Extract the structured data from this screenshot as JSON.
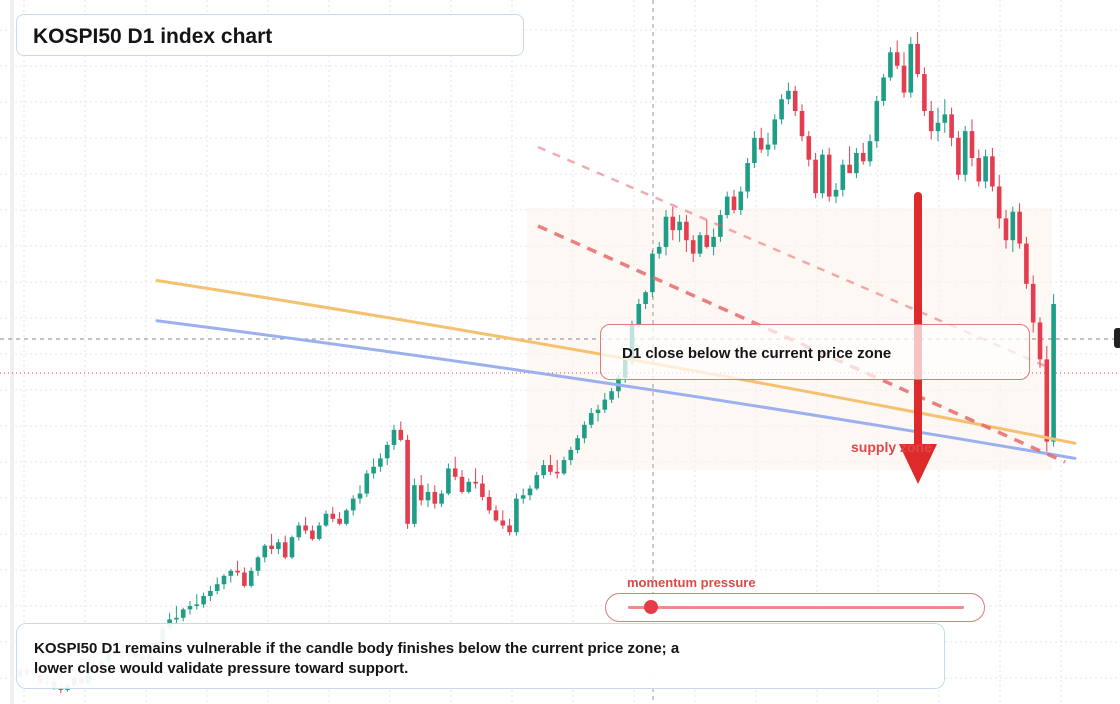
{
  "header": {
    "title": "KOSPI50 D1 index chart"
  },
  "annotations": {
    "note": "D1 close below the current price zone",
    "zone_label": "supply zone",
    "momentum_label": "momentum pressure",
    "momentum_level": 0.07,
    "summary": "KOSPI50 D1 remains vulnerable if the candle body finishes below the current price zone; a lower close would validate pressure toward support."
  },
  "colors": {
    "up": "#1e9e86",
    "down": "#e43d4f",
    "ma_orange": "#f5c170",
    "ma_blue": "#9cb0ef",
    "trend_dashed": "#e66a6a",
    "arrow": "#dd2a2a",
    "grid": "#e6e6e6"
  },
  "chart_data": {
    "type": "candlestick",
    "ohlc": [
      [
        78.4,
        79.0,
        78.3,
        78.8
      ],
      [
        78.8,
        79.0,
        78.4,
        78.6
      ],
      [
        78.6,
        78.9,
        78.3,
        78.5
      ],
      [
        78.5,
        78.7,
        77.9,
        78.0
      ],
      [
        78.0,
        78.3,
        77.8,
        78.1
      ],
      [
        78.1,
        78.4,
        77.6,
        77.7
      ],
      [
        77.7,
        77.9,
        77.4,
        77.6
      ],
      [
        77.6,
        78.0,
        77.5,
        77.9
      ],
      [
        77.9,
        78.4,
        77.8,
        78.3
      ],
      [
        78.3,
        78.6,
        77.9,
        78.0
      ],
      [
        78.0,
        78.8,
        77.9,
        78.7
      ],
      [
        78.7,
        79.1,
        78.5,
        79.0
      ],
      [
        79.0,
        79.4,
        78.8,
        79.3
      ],
      [
        79.3,
        79.9,
        79.1,
        79.8
      ],
      [
        79.8,
        80.3,
        79.5,
        79.7
      ],
      [
        79.7,
        80.2,
        79.3,
        79.6
      ],
      [
        79.6,
        80.1,
        79.2,
        79.9
      ],
      [
        79.9,
        80.4,
        79.5,
        79.6
      ],
      [
        79.6,
        80.0,
        79.1,
        79.4
      ],
      [
        79.4,
        80.2,
        79.3,
        80.1
      ],
      [
        80.1,
        80.6,
        79.9,
        80.4
      ],
      [
        80.4,
        81.4,
        80.3,
        81.3
      ],
      [
        81.3,
        82.2,
        81.1,
        81.8
      ],
      [
        81.8,
        82.6,
        81.5,
        81.9
      ],
      [
        81.9,
        82.5,
        81.7,
        82.4
      ],
      [
        82.4,
        82.9,
        82.1,
        82.6
      ],
      [
        82.6,
        83.3,
        82.4,
        82.7
      ],
      [
        82.7,
        83.4,
        82.5,
        83.2
      ],
      [
        83.2,
        83.8,
        82.9,
        83.5
      ],
      [
        83.5,
        84.3,
        83.3,
        83.9
      ],
      [
        83.9,
        84.5,
        83.6,
        84.4
      ],
      [
        84.4,
        84.8,
        84.0,
        84.7
      ],
      [
        84.7,
        85.3,
        84.4,
        84.6
      ],
      [
        84.6,
        84.9,
        83.7,
        83.8
      ],
      [
        83.8,
        84.9,
        83.7,
        84.7
      ],
      [
        84.7,
        85.6,
        84.4,
        85.5
      ],
      [
        85.5,
        86.3,
        85.2,
        86.2
      ],
      [
        86.2,
        86.9,
        85.7,
        86.0
      ],
      [
        86.0,
        86.6,
        85.7,
        86.4
      ],
      [
        86.4,
        86.8,
        85.4,
        85.5
      ],
      [
        85.5,
        86.8,
        85.4,
        86.7
      ],
      [
        86.7,
        87.6,
        86.5,
        87.4
      ],
      [
        87.4,
        87.9,
        86.9,
        87.1
      ],
      [
        87.1,
        87.4,
        86.5,
        86.6
      ],
      [
        86.6,
        87.6,
        86.5,
        87.4
      ],
      [
        87.4,
        88.3,
        87.3,
        88.1
      ],
      [
        88.1,
        88.5,
        87.6,
        87.8
      ],
      [
        87.8,
        88.2,
        87.4,
        87.5
      ],
      [
        87.5,
        88.4,
        87.4,
        88.3
      ],
      [
        88.3,
        89.2,
        88.0,
        89.0
      ],
      [
        89.0,
        89.8,
        88.7,
        89.3
      ],
      [
        89.3,
        90.7,
        89.1,
        90.5
      ],
      [
        90.5,
        91.4,
        90.2,
        90.9
      ],
      [
        90.9,
        91.7,
        90.6,
        91.4
      ],
      [
        91.4,
        92.4,
        91.0,
        92.2
      ],
      [
        92.2,
        93.4,
        91.9,
        93.1
      ],
      [
        93.1,
        93.6,
        92.4,
        92.5
      ],
      [
        92.5,
        92.8,
        87.2,
        87.5
      ],
      [
        87.5,
        90.2,
        87.3,
        89.8
      ],
      [
        89.8,
        90.4,
        88.6,
        88.9
      ],
      [
        88.9,
        89.9,
        88.5,
        89.4
      ],
      [
        89.4,
        89.8,
        88.4,
        88.7
      ],
      [
        88.7,
        89.5,
        88.5,
        89.3
      ],
      [
        89.3,
        91.1,
        89.2,
        90.8
      ],
      [
        90.8,
        91.5,
        90.1,
        90.3
      ],
      [
        90.3,
        90.7,
        89.3,
        89.4
      ],
      [
        89.4,
        90.2,
        89.3,
        90.0
      ],
      [
        90.0,
        90.8,
        89.6,
        89.9
      ],
      [
        89.9,
        90.4,
        88.9,
        89.1
      ],
      [
        89.1,
        89.5,
        88.1,
        88.3
      ],
      [
        88.3,
        88.6,
        87.6,
        87.7
      ],
      [
        87.7,
        88.3,
        87.2,
        87.4
      ],
      [
        87.4,
        87.8,
        86.8,
        87.0
      ],
      [
        87.0,
        89.3,
        86.8,
        89.0
      ],
      [
        89.0,
        89.6,
        88.7,
        89.2
      ],
      [
        89.2,
        89.8,
        88.9,
        89.6
      ],
      [
        89.6,
        90.6,
        89.5,
        90.4
      ],
      [
        90.4,
        91.3,
        90.2,
        91.0
      ],
      [
        91.0,
        91.6,
        90.4,
        90.6
      ],
      [
        90.6,
        91.3,
        90.2,
        90.5
      ],
      [
        90.5,
        91.5,
        90.4,
        91.3
      ],
      [
        91.3,
        92.1,
        91.0,
        91.9
      ],
      [
        91.9,
        92.8,
        91.7,
        92.6
      ],
      [
        92.6,
        93.6,
        92.3,
        93.4
      ],
      [
        93.4,
        94.4,
        93.2,
        94.1
      ],
      [
        94.1,
        94.6,
        93.6,
        94.3
      ],
      [
        94.3,
        95.3,
        94.1,
        94.9
      ],
      [
        94.9,
        95.6,
        94.7,
        95.4
      ],
      [
        95.4,
        96.4,
        95.0,
        96.2
      ],
      [
        96.2,
        97.6,
        95.9,
        97.3
      ],
      [
        97.3,
        99.6,
        97.0,
        99.4
      ],
      [
        99.4,
        100.9,
        99.2,
        100.6
      ],
      [
        100.6,
        101.4,
        100.3,
        101.3
      ],
      [
        101.3,
        103.8,
        101.0,
        103.6
      ],
      [
        103.6,
        104.3,
        103.3,
        104.0
      ],
      [
        104.0,
        106.2,
        103.5,
        105.8
      ],
      [
        105.8,
        106.4,
        104.4,
        105.0
      ],
      [
        105.0,
        105.9,
        104.3,
        105.5
      ],
      [
        105.5,
        105.9,
        103.7,
        104.4
      ],
      [
        104.4,
        104.7,
        103.1,
        103.6
      ],
      [
        103.6,
        104.9,
        103.4,
        104.7
      ],
      [
        104.7,
        105.6,
        103.9,
        104.0
      ],
      [
        104.0,
        105.1,
        103.5,
        104.6
      ],
      [
        104.6,
        106.2,
        104.3,
        105.9
      ],
      [
        105.9,
        107.3,
        105.7,
        107.0
      ],
      [
        107.0,
        107.4,
        106.0,
        106.2
      ],
      [
        106.2,
        107.6,
        105.9,
        107.3
      ],
      [
        107.3,
        109.3,
        106.9,
        109.0
      ],
      [
        109.0,
        110.9,
        108.7,
        110.5
      ],
      [
        110.5,
        111.1,
        109.6,
        109.8
      ],
      [
        109.8,
        110.8,
        109.4,
        110.1
      ],
      [
        110.1,
        111.9,
        109.8,
        111.6
      ],
      [
        111.6,
        113.1,
        111.3,
        112.8
      ],
      [
        112.8,
        113.8,
        112.5,
        113.3
      ],
      [
        113.3,
        113.6,
        111.8,
        112.1
      ],
      [
        112.1,
        112.5,
        110.3,
        110.6
      ],
      [
        110.6,
        110.9,
        108.8,
        109.2
      ],
      [
        109.2,
        109.6,
        106.9,
        107.2
      ],
      [
        107.2,
        109.8,
        106.9,
        109.5
      ],
      [
        109.5,
        109.9,
        106.7,
        107.0
      ],
      [
        107.0,
        107.8,
        106.6,
        107.4
      ],
      [
        107.4,
        109.2,
        107.0,
        108.9
      ],
      [
        108.9,
        110.0,
        108.4,
        108.4
      ],
      [
        108.4,
        109.9,
        108.1,
        109.6
      ],
      [
        109.6,
        110.2,
        108.9,
        109.1
      ],
      [
        109.1,
        110.7,
        108.8,
        110.3
      ],
      [
        110.3,
        113.0,
        109.9,
        112.7
      ],
      [
        112.7,
        114.3,
        112.4,
        114.1
      ],
      [
        114.1,
        115.9,
        113.9,
        115.6
      ],
      [
        115.6,
        116.3,
        114.6,
        114.8
      ],
      [
        114.8,
        115.6,
        112.9,
        113.2
      ],
      [
        113.2,
        116.5,
        112.9,
        116.1
      ],
      [
        116.1,
        116.8,
        114.1,
        114.3
      ],
      [
        114.3,
        114.7,
        111.8,
        112.1
      ],
      [
        112.1,
        112.7,
        110.4,
        110.9
      ],
      [
        110.9,
        112.3,
        110.3,
        111.4
      ],
      [
        111.4,
        112.8,
        110.8,
        111.9
      ],
      [
        111.9,
        112.3,
        110.0,
        110.5
      ],
      [
        110.5,
        110.9,
        108.0,
        108.3
      ],
      [
        108.3,
        111.2,
        107.9,
        110.9
      ],
      [
        110.9,
        111.6,
        108.8,
        109.3
      ],
      [
        109.3,
        109.8,
        107.6,
        107.9
      ],
      [
        107.9,
        109.8,
        107.5,
        109.4
      ],
      [
        109.4,
        109.9,
        107.3,
        107.6
      ],
      [
        107.6,
        108.3,
        105.1,
        105.7
      ],
      [
        105.7,
        106.2,
        103.9,
        104.4
      ],
      [
        104.4,
        106.4,
        103.7,
        106.1
      ],
      [
        106.1,
        106.6,
        103.9,
        104.2
      ],
      [
        104.2,
        104.6,
        101.5,
        101.8
      ],
      [
        101.8,
        102.3,
        98.9,
        99.5
      ],
      [
        99.5,
        99.8,
        96.8,
        97.3
      ],
      [
        97.3,
        98.1,
        91.8,
        92.4
      ],
      [
        92.4,
        101.2,
        92.1,
        100.6
      ]
    ],
    "ma_orange": [
      [
        0,
        102.0
      ],
      [
        159,
        92.3
      ]
    ],
    "ma_blue": [
      [
        0,
        99.6
      ],
      [
        159,
        91.4
      ]
    ]
  }
}
